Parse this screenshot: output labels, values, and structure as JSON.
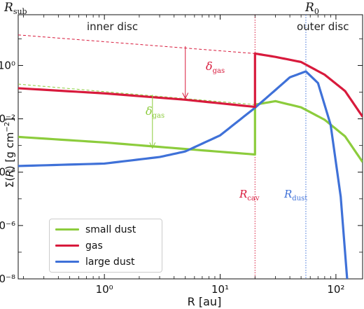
{
  "chart_data": {
    "type": "line",
    "xlabel": "R [au]",
    "ylabel": "Σ(R) [g cm⁻²]",
    "xscale": "log",
    "yscale": "log",
    "xlim": [
      0.18,
      170
    ],
    "ylim": [
      1e-08,
      80
    ],
    "x_ticks": [
      {
        "value": 1,
        "label": "10⁰"
      },
      {
        "value": 10,
        "label": "10¹"
      },
      {
        "value": 100,
        "label": "10²"
      }
    ],
    "y_ticks": [
      {
        "value": 1,
        "label": "10⁰"
      },
      {
        "value": 0.01,
        "label": "10⁻²"
      },
      {
        "value": 0.0001,
        "label": "10⁻⁴"
      },
      {
        "value": 1e-06,
        "label": "10⁻⁶"
      },
      {
        "value": 1e-08,
        "label": "10⁻⁸"
      }
    ],
    "legend_position": "bottom-left",
    "series": [
      {
        "name": "small dust",
        "color": "#8ccc3c",
        "points": [
          [
            0.18,
            0.0021
          ],
          [
            1,
            0.0013
          ],
          [
            5,
            0.00074
          ],
          [
            20,
            0.00046
          ],
          [
            20,
            0.034
          ],
          [
            30,
            0.046
          ],
          [
            50,
            0.027
          ],
          [
            80,
            0.0092
          ],
          [
            120,
            0.0022
          ],
          [
            170,
            0.00024
          ]
        ]
      },
      {
        "name": "gas",
        "color": "#d81a3c",
        "points": [
          [
            0.18,
            0.14
          ],
          [
            1,
            0.09
          ],
          [
            5,
            0.052
          ],
          [
            20,
            0.028
          ],
          [
            20,
            2.8
          ],
          [
            30,
            2.1
          ],
          [
            50,
            1.35
          ],
          [
            80,
            0.45
          ],
          [
            120,
            0.11
          ],
          [
            170,
            0.012
          ]
        ]
      },
      {
        "name": "large dust",
        "color": "#3f71d8",
        "points": [
          [
            0.18,
            0.00017
          ],
          [
            1,
            0.00021
          ],
          [
            3,
            0.00037
          ],
          [
            5,
            0.0006
          ],
          [
            10,
            0.0024
          ],
          [
            20,
            0.026
          ],
          [
            30,
            0.12
          ],
          [
            40,
            0.36
          ],
          [
            55,
            0.6
          ],
          [
            70,
            0.22
          ],
          [
            90,
            0.006
          ],
          [
            110,
            1.2e-05
          ],
          [
            125,
            1e-08
          ]
        ]
      }
    ],
    "dashed_guides": [
      {
        "label": "gas",
        "color": "#d81a3c",
        "points": [
          [
            0.18,
            14
          ],
          [
            20,
            2.8
          ]
        ]
      },
      {
        "label": "small dust",
        "color": "#8ccc3c",
        "points": [
          [
            0.18,
            0.2
          ],
          [
            20,
            0.034
          ]
        ]
      }
    ],
    "vertical_lines": [
      {
        "name": "R_cav",
        "x": 20,
        "color": "#d81a3c"
      },
      {
        "name": "R_dust",
        "x": 55,
        "color": "#3f71d8"
      }
    ],
    "arrows": [
      {
        "label": "δ_gas",
        "color": "#d81a3c",
        "x": 5,
        "from": 5.3,
        "to": 0.058
      },
      {
        "label": "δ_gas",
        "color": "#8ccc3c",
        "x": 2.6,
        "from": 0.08,
        "to": 0.0008
      }
    ]
  },
  "annotations": {
    "r_sub_main": "R",
    "r_sub_sub": "sub",
    "r_0_main": "R",
    "r_0_sub": "0",
    "inner_disc": "inner disc",
    "outer_disc": "outer disc",
    "delta_main": "δ",
    "delta_sub": "gas",
    "r_cav_main": "R",
    "r_cav_sub": "cav",
    "r_dust_main": "R",
    "r_dust_sub": "dust"
  },
  "axis_labels": {
    "x_main": "R [au]",
    "y_prefix": "Σ(",
    "y_var": "R",
    "y_mid": ") [g cm",
    "y_exp": "−2",
    "y_suffix": "]"
  },
  "legend": {
    "items": [
      {
        "label": "small dust",
        "color": "#8ccc3c"
      },
      {
        "label": "gas",
        "color": "#d81a3c"
      },
      {
        "label": "large dust",
        "color": "#3f71d8"
      }
    ]
  }
}
